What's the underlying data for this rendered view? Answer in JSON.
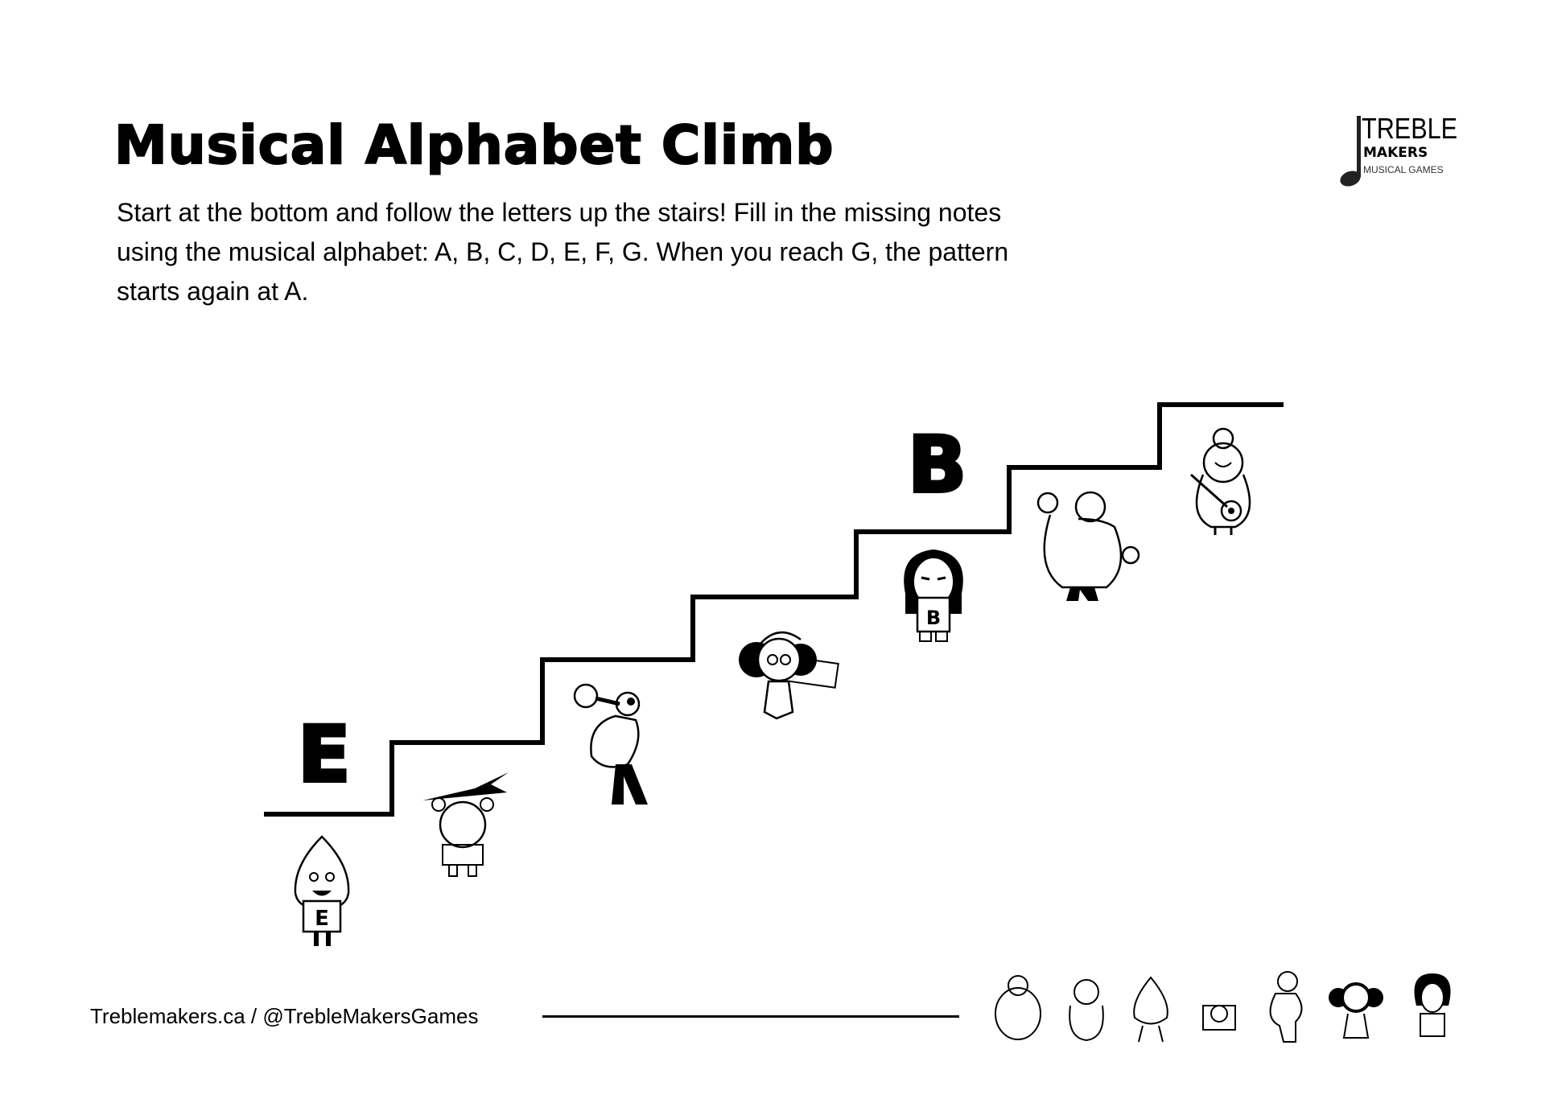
{
  "header": {
    "title": "Musical Alphabet Climb",
    "description": "Start at the bottom and follow the letters up the stairs! Fill in the missing notes using the musical alphabet: A, B, C, D, E, F, G. When you reach G, the pattern starts again at A."
  },
  "logo": {
    "line1": "TREBLE",
    "line2": "MAKERS",
    "line3": "MUSICAL GAMES"
  },
  "stairs": {
    "steps": [
      {
        "letter": "E",
        "sign": "E"
      },
      {
        "letter": ""
      },
      {
        "letter": ""
      },
      {
        "letter": ""
      },
      {
        "letter": "B",
        "sign": "B"
      },
      {
        "letter": ""
      },
      {
        "letter": ""
      }
    ]
  },
  "footer": {
    "text": "Treblemakers.ca / @TrebleMakersGames"
  },
  "colors": {
    "ink": "#000000",
    "background": "#ffffff"
  }
}
